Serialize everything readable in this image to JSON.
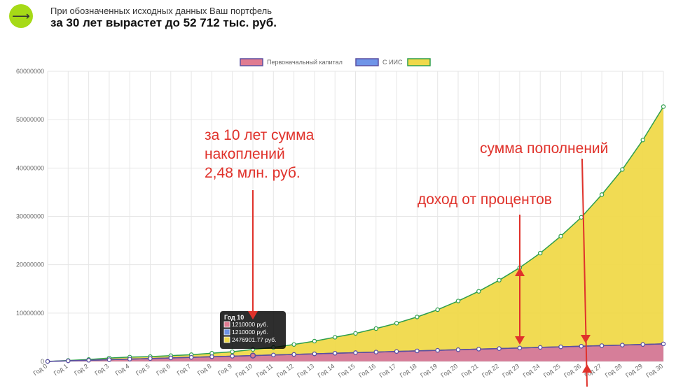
{
  "header": {
    "icon": "arrow-right-icon",
    "subtitle": "При обозначенных исходных данных Ваш портфель",
    "title": "за 30 лет вырастет до 52 712 тыс. руб."
  },
  "chart_data": {
    "type": "area",
    "categories": [
      "Год 0",
      "Год 1",
      "Год 2",
      "Год 3",
      "Год 4",
      "Год 5",
      "Год 6",
      "Год 7",
      "Год 8",
      "Год 9",
      "Год 10",
      "Год 11",
      "Год 12",
      "Год 13",
      "Год 14",
      "Год 15",
      "Год 16",
      "Год 17",
      "Год 18",
      "Год 19",
      "Год 20",
      "Год 21",
      "Год 22",
      "Год 23",
      "Год 24",
      "Год 25",
      "Год 26",
      "Год 27",
      "Год 28",
      "Год 29",
      "Год 30"
    ],
    "ylim": [
      0,
      60000000
    ],
    "yticks": [
      0,
      10000000,
      20000000,
      30000000,
      40000000,
      50000000,
      60000000
    ],
    "grid": true,
    "legend_position": "top",
    "series": [
      {
        "name": "Первоначальный капитал",
        "color": "#e07b91",
        "line": "#5a4fa0",
        "values": [
          0,
          121000,
          242000,
          363000,
          484000,
          605000,
          726000,
          847000,
          968000,
          1089000,
          1210000,
          1331000,
          1452000,
          1573000,
          1694000,
          1815000,
          1936000,
          2057000,
          2178000,
          2299000,
          2420000,
          2541000,
          2662000,
          2783000,
          2904000,
          3025000,
          3146000,
          3267000,
          3388000,
          3509000,
          3630000
        ]
      },
      {
        "name": "С ИИС",
        "color": "#6f94e8",
        "line": "#5a4fa0",
        "values": [
          0,
          121000,
          242000,
          363000,
          484000,
          605000,
          726000,
          847000,
          968000,
          1089000,
          1210000,
          1331000,
          1452000,
          1573000,
          1694000,
          1815000,
          1936000,
          2057000,
          2178000,
          2299000,
          2420000,
          2541000,
          2662000,
          2783000,
          2904000,
          3025000,
          3146000,
          3267000,
          3388000,
          3509000,
          3630000
        ]
      },
      {
        "name": "",
        "color": "#f0d94a",
        "line": "#2e9e4d",
        "values": [
          0,
          200000,
          400000,
          700000,
          900000,
          1000000,
          1200000,
          1400000,
          1700000,
          2000000,
          2476901.77,
          2900000,
          3500000,
          4200000,
          5000000,
          5800000,
          6800000,
          7900000,
          9200000,
          10700000,
          12500000,
          14500000,
          16800000,
          19400000,
          22400000,
          25900000,
          29800000,
          34500000,
          39700000,
          45800000,
          52700000
        ]
      }
    ],
    "tooltip": {
      "title": "Год 10",
      "lines": [
        "1210000 руб.",
        "1210000 руб.",
        "2476901.77 руб."
      ],
      "index": 10
    }
  },
  "annotations": {
    "ten_years": [
      "за 10 лет сумма",
      "накоплений",
      "2,48 млн. руб."
    ],
    "contributions": "сумма пополнений",
    "interest": "доход от процентов"
  }
}
